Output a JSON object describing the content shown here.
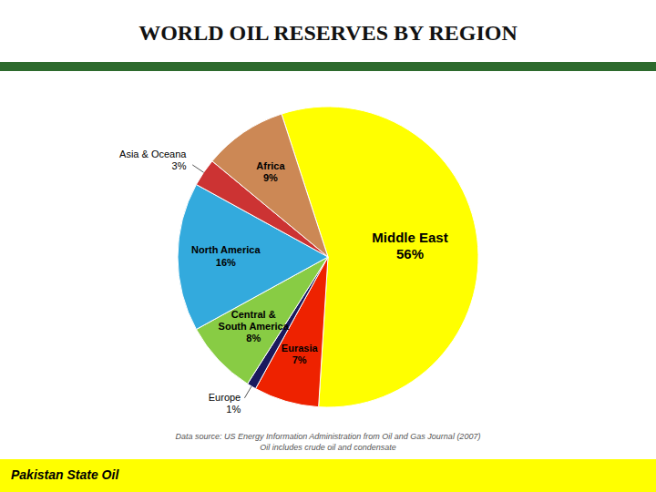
{
  "chart_data": {
    "type": "pie",
    "title": "WORLD OIL RESERVES BY REGION",
    "categories": [
      "Middle East",
      "Eurasia",
      "Europe",
      "Central &\nSouth America",
      "North America",
      "Asia & Oceana",
      "Africa"
    ],
    "values": [
      56,
      7,
      1,
      8,
      16,
      3,
      9
    ],
    "value_labels": [
      "56%",
      "7%",
      "1%",
      "8%",
      "16%",
      "3%",
      "9%"
    ],
    "colors": [
      "#FFFF00",
      "#EE2200",
      "#1A1A5E",
      "#88CC44",
      "#33AADD",
      "#CC3333",
      "#CC8855"
    ],
    "data_labels": true,
    "annotations": [
      "Data source: US Energy Information Administration from Oil and Gas Journal (2007)",
      "Oil includes crude oil and condensate",
      "Pakistan State Oil"
    ]
  }
}
